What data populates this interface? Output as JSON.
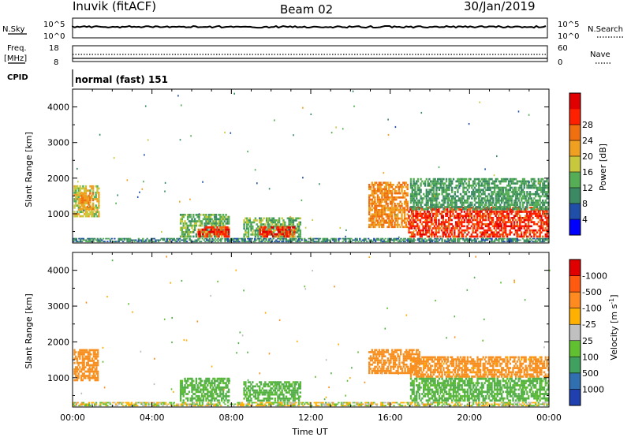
{
  "header": {
    "station": "Inuvik (fitACF)",
    "beam": "Beam 02",
    "date": "30/Jan/2019"
  },
  "top_panels": {
    "nsky_label": "N.Sky",
    "nsky_ticks": [
      "10^5",
      "10^0"
    ],
    "nsearch_label": "N.Search",
    "nsearch_ticks": [
      "10^5",
      "10^0"
    ],
    "freq_label": "Freq.",
    "freq_unit": "[MHz]",
    "freq_ticks": [
      "18",
      "8"
    ],
    "nave_label": "Nave",
    "nave_ticks": [
      "60",
      "0"
    ],
    "cpid_label": "CPID",
    "cpid_text": "normal (fast) 151"
  },
  "colors": {
    "power": [
      "#0000ff",
      "#1f4fa8",
      "#3c8a63",
      "#55ad55",
      "#c8c83c",
      "#f0a020",
      "#f07010",
      "#ff2000",
      "#e00000"
    ],
    "velocity_scale": [
      "#2040b0",
      "#3070b0",
      "#40a060",
      "#60c030",
      "#c0c0c0",
      "#ffb000",
      "#ff8a20",
      "#ff5a10",
      "#e00000"
    ],
    "power_main": "#ff2a00",
    "vel_orange": "#f79020",
    "vel_green": "#55b04a",
    "vel_gray": "#bbbbbb"
  },
  "chart_data": [
    {
      "type": "heatmap",
      "name": "power",
      "ylabel": "Slant Range [km]",
      "xlabel": "Time UT",
      "x_ticks": [
        "00:00",
        "04:00",
        "08:00",
        "12:00",
        "16:00",
        "20:00",
        "00:00"
      ],
      "x_range_hours": [
        0,
        24
      ],
      "ylim": [
        180,
        4500
      ],
      "y_ticks": [
        1000,
        2000,
        3000,
        4000
      ],
      "colorbar_label": "Power [dB]",
      "colorbar_ticks": [
        "4",
        "8",
        "12",
        "16",
        "20",
        "24",
        "28"
      ],
      "colorbar_range": [
        0,
        32
      ],
      "patches": [
        {
          "t0": 0.05,
          "t1": 1.35,
          "r0": 900,
          "r1": 1800,
          "v": 18
        },
        {
          "t0": 0.35,
          "t1": 1.05,
          "r0": 1100,
          "r1": 1600,
          "v": 24
        },
        {
          "t0": 5.4,
          "t1": 7.9,
          "r0": 330,
          "r1": 1000,
          "v": 14
        },
        {
          "t0": 6.3,
          "t1": 7.9,
          "r0": 330,
          "r1": 650,
          "v": 30
        },
        {
          "t0": 8.6,
          "t1": 11.5,
          "r0": 330,
          "r1": 900,
          "v": 14
        },
        {
          "t0": 9.4,
          "t1": 11.2,
          "r0": 330,
          "r1": 650,
          "v": 30
        },
        {
          "t0": 14.9,
          "t1": 16.9,
          "r0": 600,
          "r1": 1900,
          "v": 24
        },
        {
          "t0": 16.9,
          "t1": 24.0,
          "r0": 330,
          "r1": 1200,
          "v": 30
        },
        {
          "t0": 17.0,
          "t1": 24.0,
          "r0": 1100,
          "r1": 2000,
          "v": 12
        },
        {
          "t0": 0.0,
          "t1": 24.0,
          "r0": 200,
          "r1": 320,
          "v": 10
        }
      ]
    },
    {
      "type": "heatmap",
      "name": "velocity",
      "ylabel": "Slant Range [km]",
      "xlabel": "Time UT",
      "x_ticks": [
        "00:00",
        "04:00",
        "08:00",
        "12:00",
        "16:00",
        "20:00",
        "00:00"
      ],
      "x_range_hours": [
        0,
        24
      ],
      "ylim": [
        180,
        4500
      ],
      "y_ticks": [
        1000,
        2000,
        3000,
        4000
      ],
      "colorbar_label": "Velocity [m s^-1]",
      "colorbar_ticks": [
        "1000",
        "500",
        "100",
        "25",
        "-25",
        "-100",
        "-500",
        "-1000"
      ],
      "patches": [
        {
          "t0": 0.05,
          "t1": 1.3,
          "r0": 900,
          "r1": 1800,
          "v": -300
        },
        {
          "t0": 5.4,
          "t1": 7.9,
          "r0": 330,
          "r1": 1000,
          "v": 150
        },
        {
          "t0": 8.6,
          "t1": 11.5,
          "r0": 330,
          "r1": 900,
          "v": 150
        },
        {
          "t0": 14.9,
          "t1": 17.5,
          "r0": 1100,
          "r1": 1800,
          "v": -300
        },
        {
          "t0": 17.0,
          "t1": 24.0,
          "r0": 1000,
          "r1": 1600,
          "v": -200
        },
        {
          "t0": 17.0,
          "t1": 24.0,
          "r0": 330,
          "r1": 1000,
          "v": 150
        },
        {
          "t0": 0.0,
          "t1": 24.0,
          "r0": 200,
          "r1": 320,
          "v": 0
        }
      ]
    }
  ]
}
